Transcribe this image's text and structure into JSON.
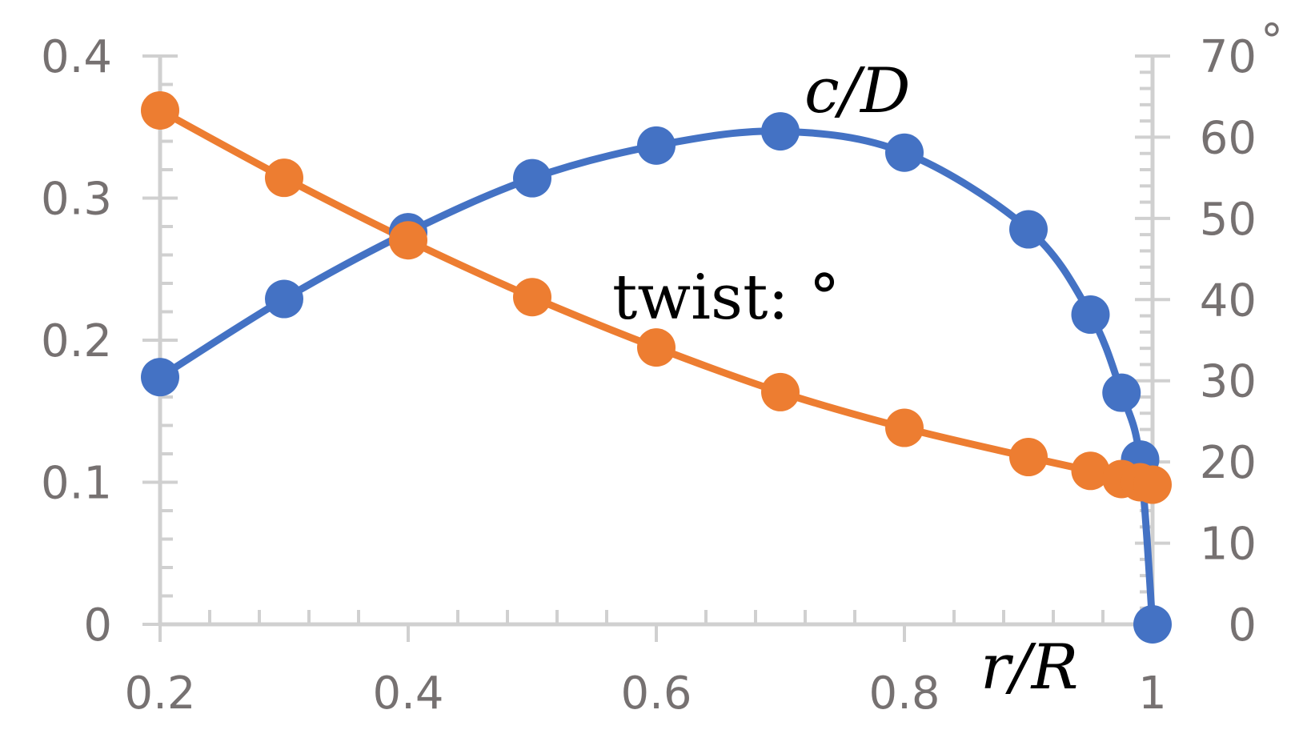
{
  "chart_data": {
    "type": "line",
    "xlabel": "r/R",
    "x_ticks": [
      "0.2",
      "0.4",
      "0.6",
      "0.8",
      "1"
    ],
    "xlim": [
      0.2,
      1.0
    ],
    "y_left": {
      "ylim": [
        0,
        0.4
      ],
      "ticks": [
        "0",
        "0.1",
        "0.2",
        "0.3",
        "0.4"
      ]
    },
    "y_right": {
      "ylim": [
        0,
        70
      ],
      "ticks": [
        "0",
        "10",
        "20",
        "30",
        "40",
        "50",
        "60",
        "70"
      ],
      "unit_label": "°"
    },
    "series": [
      {
        "name": "c/D",
        "axis": "left",
        "color": "#4472C4",
        "x": [
          0.2,
          0.3,
          0.4,
          0.5,
          0.6,
          0.7,
          0.8,
          0.9,
          0.95,
          0.975,
          0.99,
          1.0
        ],
        "y": [
          0.174,
          0.229,
          0.276,
          0.314,
          0.337,
          0.347,
          0.332,
          0.278,
          0.218,
          0.163,
          0.116,
          0.0
        ]
      },
      {
        "name": "twist: °",
        "axis": "right",
        "color": "#ED7D31",
        "x": [
          0.2,
          0.3,
          0.4,
          0.5,
          0.6,
          0.7,
          0.8,
          0.9,
          0.95,
          0.975,
          0.99,
          1.0
        ],
        "y": [
          63.3,
          55.0,
          47.3,
          40.3,
          34.1,
          28.6,
          24.2,
          20.6,
          18.9,
          17.9,
          17.5,
          17.2
        ]
      }
    ],
    "annotations": [
      "c/D",
      "twist: °"
    ]
  }
}
